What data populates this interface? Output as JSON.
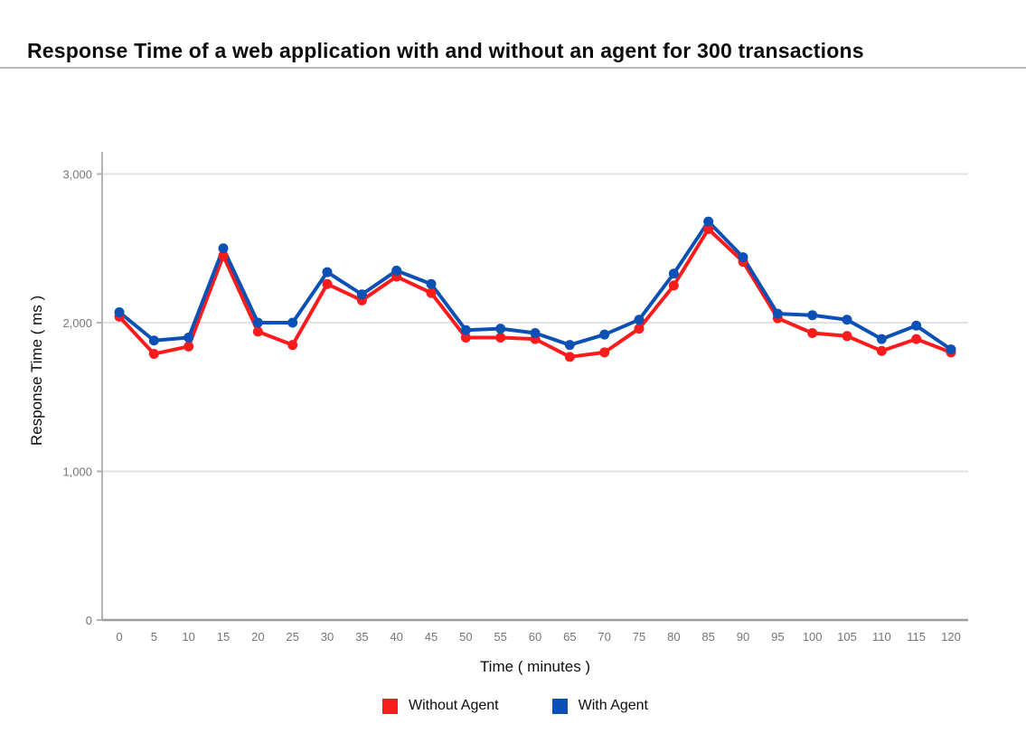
{
  "chart_data": {
    "type": "line",
    "title": "Response Time of a web application with and without an agent for 300 transactions",
    "xlabel": "Time ( minutes )",
    "ylabel": "Response Time ( ms )",
    "x": [
      0,
      5,
      10,
      15,
      20,
      25,
      30,
      35,
      40,
      45,
      50,
      55,
      60,
      65,
      70,
      75,
      80,
      85,
      90,
      95,
      100,
      105,
      110,
      115,
      120
    ],
    "x_tick_labels": [
      "0",
      "5",
      "10",
      "15",
      "20",
      "25",
      "30",
      "35",
      "40",
      "45",
      "50",
      "55",
      "60",
      "65",
      "70",
      "75",
      "80",
      "85",
      "90",
      "95",
      "100",
      "105",
      "110",
      "115",
      "120"
    ],
    "y_ticks": [
      {
        "value": 0,
        "label": "0"
      },
      {
        "value": 1000,
        "label": "1,000"
      },
      {
        "value": 2000,
        "label": "2,000"
      },
      {
        "value": 3000,
        "label": "3,000"
      }
    ],
    "ylim": [
      0,
      3150
    ],
    "grid": true,
    "legend_position": "bottom",
    "series": [
      {
        "name": "Without Agent",
        "color": "#fa1c1c",
        "values": [
          2040,
          1790,
          1840,
          2450,
          1940,
          1850,
          2260,
          2150,
          2310,
          2200,
          1900,
          1900,
          1890,
          1770,
          1800,
          1960,
          2250,
          2630,
          2410,
          2030,
          1930,
          1910,
          1810,
          1890,
          1800
        ]
      },
      {
        "name": "With Agent",
        "color": "#0b50b4",
        "values": [
          2070,
          1880,
          1900,
          2500,
          2000,
          2000,
          2340,
          2190,
          2350,
          2260,
          1950,
          1960,
          1930,
          1850,
          1920,
          2020,
          2330,
          2680,
          2440,
          2060,
          2050,
          2020,
          1890,
          1980,
          1820
        ]
      }
    ],
    "colors": {
      "grid_line": "#e2e2e2",
      "axis_line": "#9e9e9e",
      "tick_label": "#757575"
    }
  }
}
